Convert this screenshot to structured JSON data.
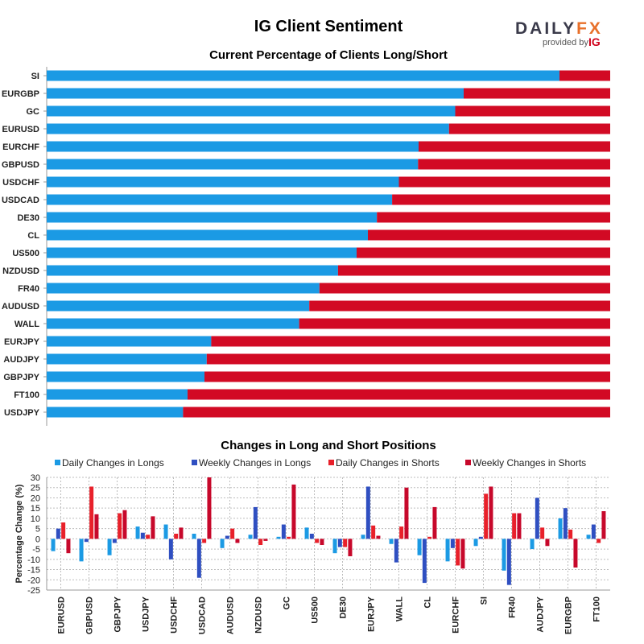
{
  "header": {
    "title": "IG Client Sentiment",
    "logo_word_a": "DAILY",
    "logo_word_b": "FX",
    "logo_provided": "provided by",
    "logo_ig": "IG"
  },
  "colors": {
    "long": "#1b9ae4",
    "short": "#d20a24",
    "daily_longs": "#1b9ae4",
    "weekly_longs": "#2f4fc1",
    "daily_shorts": "#e8202a",
    "weekly_shorts": "#c7082b"
  },
  "chart_data": [
    {
      "type": "bar",
      "orientation": "horizontal",
      "stacked": true,
      "title": "Current Percentage of Clients Long/Short",
      "categories": [
        "SI",
        "EURGBP",
        "GC",
        "EURUSD",
        "EURCHF",
        "GBPUSD",
        "USDCHF",
        "USDCAD",
        "DE30",
        "CL",
        "US500",
        "NZDUSD",
        "FR40",
        "AUDUSD",
        "WALL",
        "EURJPY",
        "AUDJPY",
        "GBPJPY",
        "FT100",
        "USDJPY"
      ],
      "series": [
        {
          "values": [
            91,
            74,
            72.5,
            71.4,
            66,
            65.9,
            62.5,
            61.3,
            58.6,
            57,
            55,
            51.7,
            48.4,
            46.6,
            44.8,
            29.2,
            28.4,
            28,
            25,
            24.2
          ]
        },
        {
          "values": [
            9,
            26,
            27.5,
            28.6,
            34,
            34.1,
            37.5,
            38.7,
            41.4,
            43,
            45,
            48.3,
            51.6,
            53.4,
            55.2,
            70.8,
            71.6,
            72,
            75,
            75.8
          ]
        }
      ],
      "xlim": [
        0,
        100
      ]
    },
    {
      "type": "bar",
      "title": "Changes in Long and Short Positions",
      "ylabel": "Percentage Change (%)",
      "ylim": [
        -25,
        30
      ],
      "yticks": [
        30,
        25,
        20,
        15,
        10,
        5,
        0,
        -5,
        -10,
        -15,
        -20,
        -25
      ],
      "grid": true,
      "legend": "top",
      "categories": [
        "EURUSD",
        "GBPUSD",
        "GBPJPY",
        "USDJPY",
        "USDCHF",
        "USDCAD",
        "AUDUSD",
        "NZDUSD",
        "GC",
        "US500",
        "DE30",
        "EURJPY",
        "WALL",
        "CL",
        "EURCHF",
        "SI",
        "FR40",
        "AUDJPY",
        "EURGBP",
        "FT100"
      ],
      "series": [
        {
          "name": "Daily Changes in Longs",
          "values": [
            -6,
            -11,
            -8,
            6,
            7,
            2.5,
            -4.5,
            2,
            1,
            5.5,
            -7,
            2,
            -2.5,
            -8,
            -11,
            -3.5,
            -15.5,
            -5,
            10,
            2
          ]
        },
        {
          "name": "Weekly Changes in Longs",
          "values": [
            5,
            -1.5,
            -2,
            3,
            -10,
            -19,
            1.5,
            15.5,
            7,
            2.5,
            -4,
            25.5,
            -11.5,
            -21.5,
            -4.5,
            1,
            -22.5,
            20,
            15,
            7
          ]
        },
        {
          "name": "Daily Changes in Shorts",
          "values": [
            8,
            25.5,
            12.5,
            2,
            2.5,
            -2,
            5,
            -3,
            1,
            -2,
            -4,
            6.5,
            6,
            1,
            -13,
            22,
            12.5,
            5.5,
            4.5,
            -2
          ]
        },
        {
          "name": "Weekly Changes in Shorts",
          "values": [
            -7,
            12,
            14,
            11,
            5.5,
            30,
            -2,
            -1,
            26.5,
            -3,
            -8.5,
            1.5,
            25,
            15.5,
            -14.5,
            25.5,
            12.5,
            -3.5,
            -14,
            13.5
          ]
        }
      ]
    }
  ]
}
